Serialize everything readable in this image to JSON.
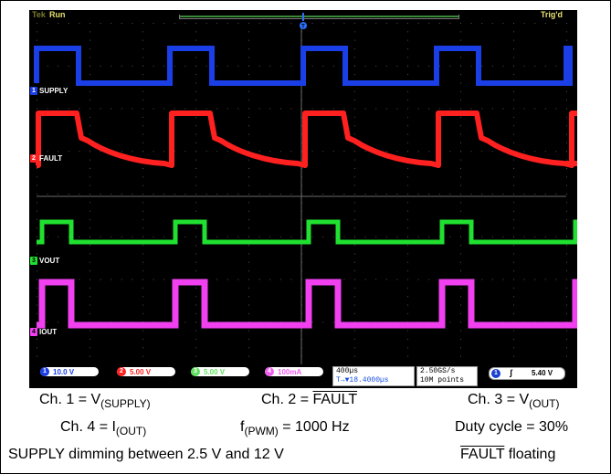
{
  "status_bar": {
    "brand": "Tek",
    "run_state": "Run",
    "trigger_state": "Trig'd",
    "trigger_marker_label": "T"
  },
  "channels": [
    {
      "id": 1,
      "name": "SUPPLY",
      "scale": "10.0 V",
      "color": "#1a3fe6"
    },
    {
      "id": 2,
      "name": "FAULT",
      "scale": "5.00 V",
      "color": "#ff2020"
    },
    {
      "id": 3,
      "name": "VOUT",
      "scale": "5.00 V",
      "color": "#20e030"
    },
    {
      "id": 4,
      "name": "IOUT",
      "scale": "100mA",
      "color": "#f040f0"
    }
  ],
  "readouts": {
    "timebase": "400µs",
    "trigger_position": "T→▼18.4000µs",
    "sample_rate": "2.50GS/s",
    "record_length": "10M points",
    "trigger_source": "1",
    "trigger_slope": "ʃ",
    "trigger_level": "5.40 V"
  },
  "caption": {
    "ch1_prefix": "Ch. 1 = V",
    "ch1_sub": "(SUPPLY)",
    "ch2_prefix": "Ch. 2 = ",
    "ch2_overline": "FAULT",
    "ch3_prefix": "Ch. 3 = V",
    "ch3_sub": "(OUT)",
    "ch4_prefix": "Ch. 4 = I",
    "ch4_sub": "(OUT)",
    "fpwm_prefix": "f",
    "fpwm_sub": "(PWM)",
    "fpwm_suffix": " = 1000 Hz",
    "duty_cycle": "Duty cycle = 30%",
    "dimming": "SUPPLY dimming between 2.5 V and 12 V",
    "fault_overline": "FAULT",
    "fault_suffix": " floating"
  }
}
